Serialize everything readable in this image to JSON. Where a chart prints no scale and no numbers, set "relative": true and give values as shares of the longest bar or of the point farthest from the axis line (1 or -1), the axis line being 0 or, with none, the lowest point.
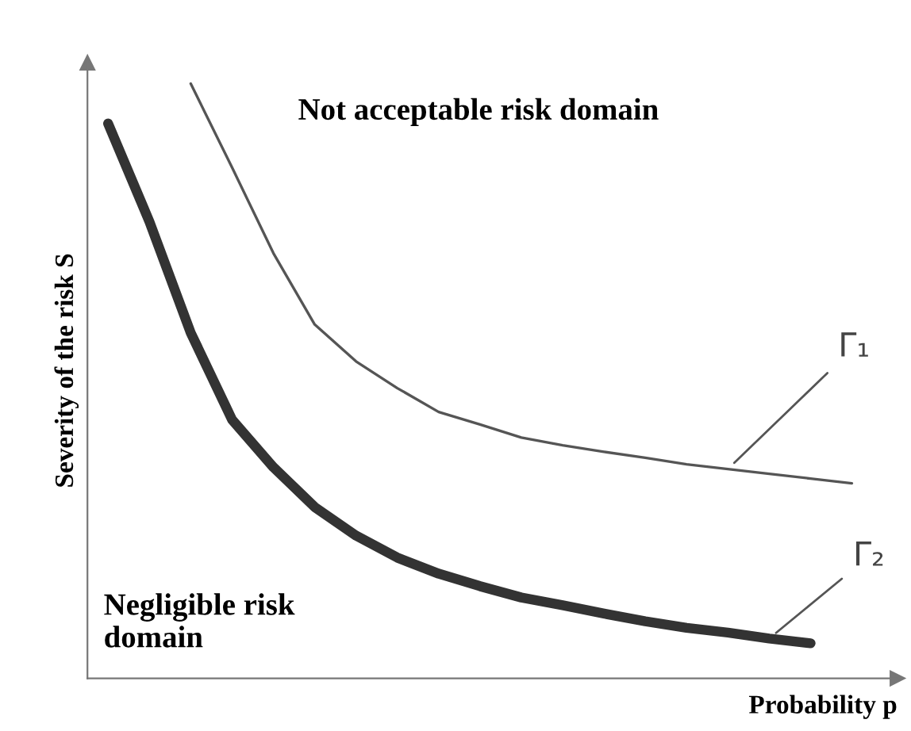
{
  "chart_data": {
    "type": "line",
    "relative": true,
    "xlabel": "Probability p",
    "ylabel": "Severity of the risk S",
    "categories": [
      null,
      null,
      null,
      null,
      null,
      null,
      null,
      null,
      null,
      null,
      null,
      null,
      null,
      null,
      null,
      null,
      null,
      null,
      null
    ],
    "annotations": [
      "Not acceptable risk domain",
      "Negligible risk\ndomain"
    ],
    "legend": false,
    "marker": "none",
    "line_style": "solid",
    "series": [
      {
        "name": "Γ₁",
        "color": "#555555",
        "values": [
          null,
          null,
          1,
          0.859,
          0.715,
          0.595,
          0.533,
          0.488,
          0.448,
          0.427,
          0.405,
          0.392,
          0.381,
          0.371,
          0.36,
          0.352,
          0.344,
          0.336,
          0.328
        ]
      },
      {
        "name": "Γ₂",
        "color": "#333333",
        "values": [
          0.933,
          0.768,
          0.581,
          0.435,
          0.355,
          0.288,
          0.24,
          0.203,
          0.176,
          0.155,
          0.136,
          0.123,
          0.109,
          0.096,
          0.085,
          0.077,
          0.067,
          0.059,
          null
        ]
      }
    ]
  }
}
